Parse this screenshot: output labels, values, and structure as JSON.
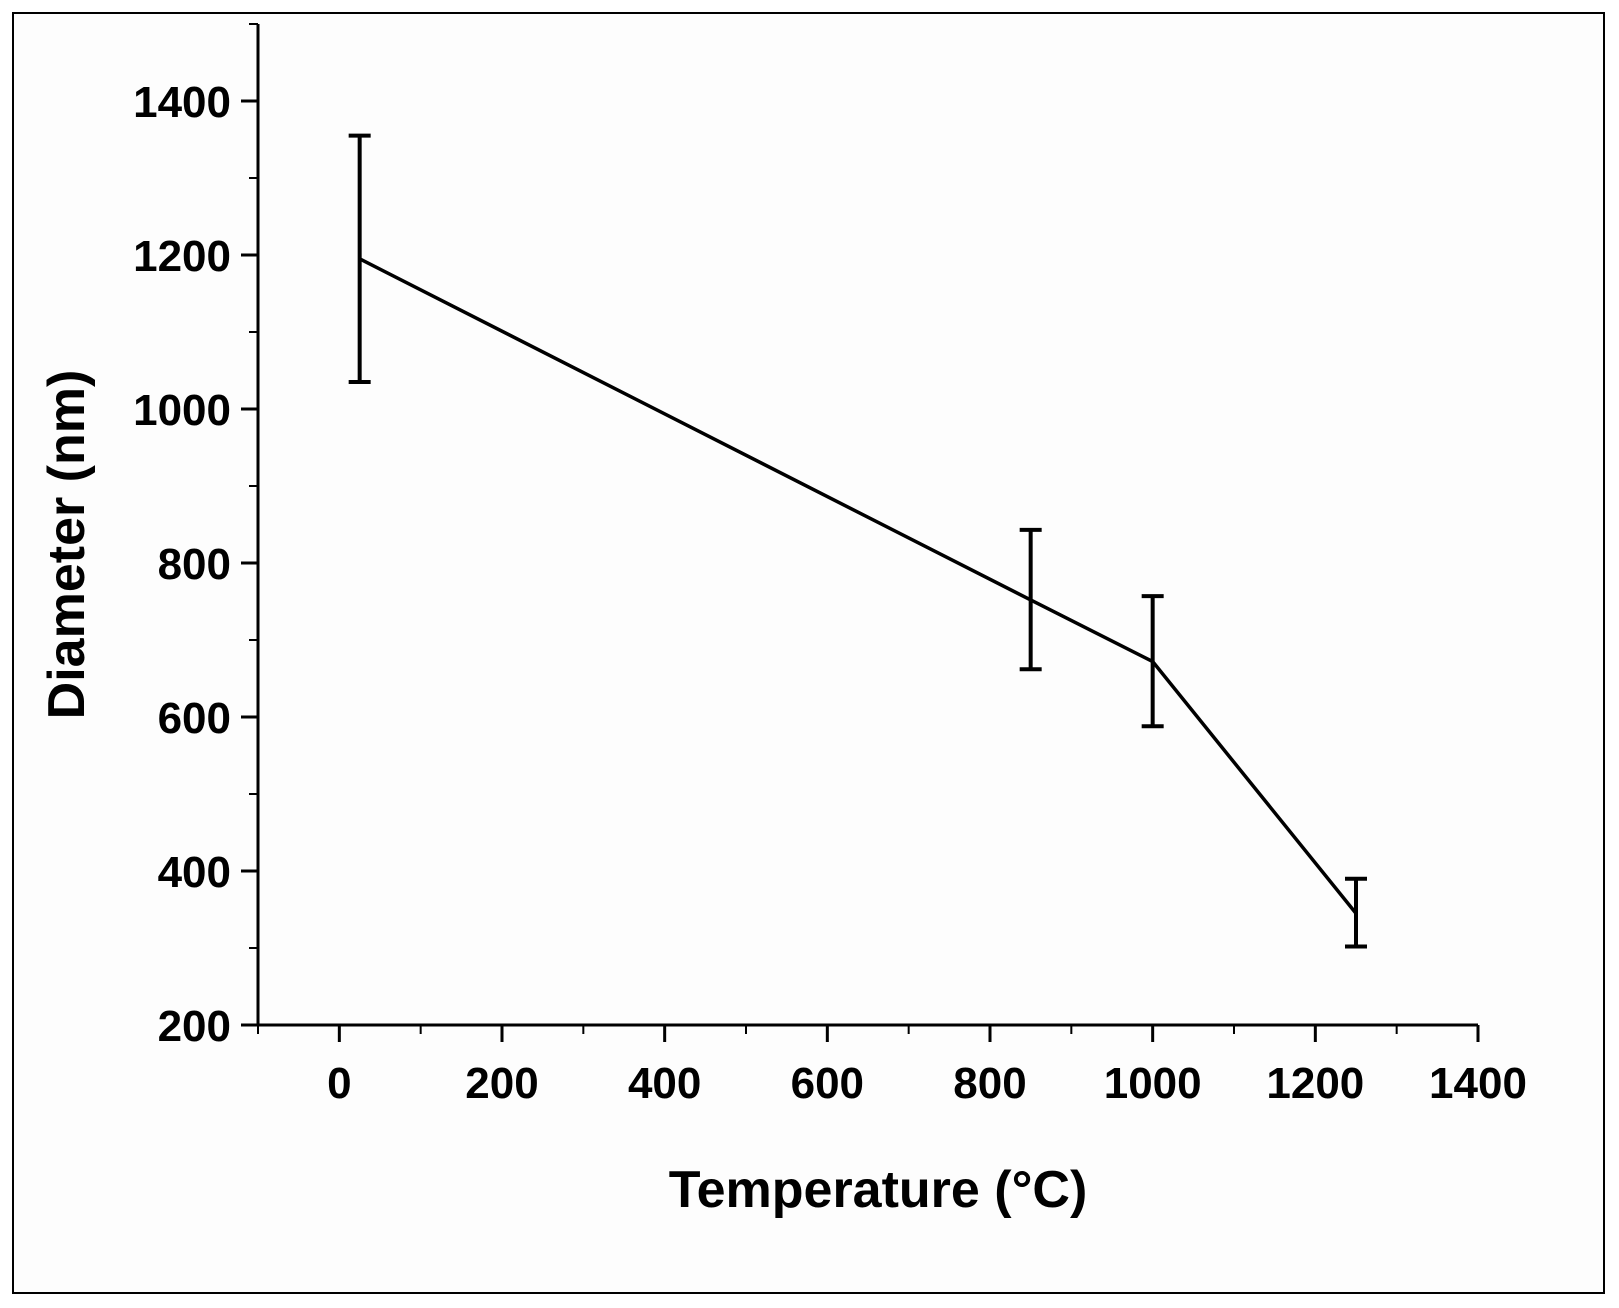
{
  "chart_data": {
    "type": "line",
    "title": "",
    "xlabel": "Temperature (°C)",
    "ylabel": "Diameter (nm)",
    "xlim": [
      -100,
      1400
    ],
    "ylim": [
      200,
      1500
    ],
    "xticks": [
      0,
      200,
      400,
      600,
      800,
      1000,
      1200,
      1400
    ],
    "xtick_labels": [
      "0",
      "200",
      "400",
      "600",
      "800",
      "1000",
      "1200",
      "1400"
    ],
    "yticks": [
      200,
      400,
      600,
      800,
      1000,
      1200,
      1400
    ],
    "ytick_labels": [
      "200",
      "400",
      "600",
      "800",
      "1000",
      "1200",
      "1400"
    ],
    "x_minor_step": 100,
    "y_minor_step": 100,
    "grid": false,
    "series": [
      {
        "name": "Diameter",
        "color": "#000000",
        "x": [
          25,
          850,
          1000,
          1250
        ],
        "y": [
          1195,
          752,
          672,
          345
        ],
        "err_low": [
          1035,
          662,
          588,
          302
        ],
        "err_high": [
          1355,
          843,
          757,
          390
        ]
      }
    ]
  }
}
